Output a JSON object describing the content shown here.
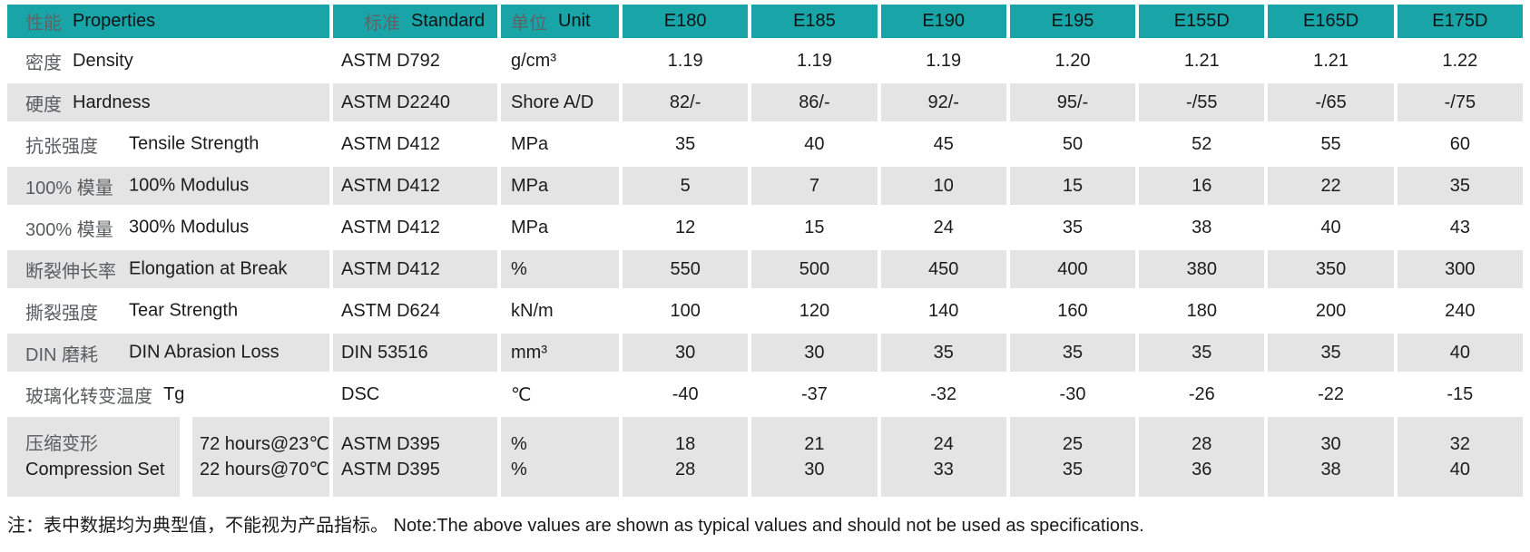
{
  "colors": {
    "header_teal": "#19a5a8",
    "row_gray": "#e4e4e5"
  },
  "table": {
    "header": {
      "properties_zh": "性能",
      "properties_en": "Properties",
      "standard_zh": "标准",
      "standard_en": "Standard",
      "unit_zh": "单位",
      "unit_en": "Unit",
      "products": [
        "E180",
        "E185",
        "E190",
        "E195",
        "E155D",
        "E165D",
        "E175D"
      ]
    },
    "rows": [
      {
        "zh": "密度",
        "en": "Density",
        "standard": "ASTM D792",
        "unit": "g/cm³",
        "en_aligned": false,
        "values": [
          "1.19",
          "1.19",
          "1.19",
          "1.20",
          "1.21",
          "1.21",
          "1.22"
        ]
      },
      {
        "zh": "硬度",
        "en": "Hardness",
        "standard": "ASTM D2240",
        "unit": "Shore A/D",
        "en_aligned": false,
        "values": [
          "82/-",
          "86/-",
          "92/-",
          "95/-",
          "-/55",
          "-/65",
          "-/75"
        ]
      },
      {
        "zh": "抗张强度",
        "en": "Tensile Strength",
        "standard": "ASTM D412",
        "unit": "MPa",
        "en_aligned": true,
        "values": [
          "35",
          "40",
          "45",
          "50",
          "52",
          "55",
          "60"
        ]
      },
      {
        "zh": "100% 模量",
        "en": "100% Modulus",
        "standard": "ASTM D412",
        "unit": "MPa",
        "en_aligned": true,
        "values": [
          "5",
          "7",
          "10",
          "15",
          "16",
          "22",
          "35"
        ]
      },
      {
        "zh": "300% 模量",
        "en": "300% Modulus",
        "standard": "ASTM D412",
        "unit": "MPa",
        "en_aligned": true,
        "values": [
          "12",
          "15",
          "24",
          "35",
          "38",
          "40",
          "43"
        ]
      },
      {
        "zh": "断裂伸长率",
        "en": "Elongation at Break",
        "standard": "ASTM D412",
        "unit": "%",
        "en_aligned": true,
        "values": [
          "550",
          "500",
          "450",
          "400",
          "380",
          "350",
          "300"
        ]
      },
      {
        "zh": "撕裂强度",
        "en": "Tear Strength",
        "standard": "ASTM D624",
        "unit": "kN/m",
        "en_aligned": true,
        "values": [
          "100",
          "120",
          "140",
          "160",
          "180",
          "200",
          "240"
        ]
      },
      {
        "zh": "DIN 磨耗",
        "en": "DIN Abrasion Loss",
        "standard": "DIN 53516",
        "unit": "mm³",
        "en_aligned": true,
        "values": [
          "30",
          "30",
          "35",
          "35",
          "35",
          "35",
          "40"
        ]
      },
      {
        "zh": "玻璃化转变温度",
        "en": "Tg",
        "standard": "DSC",
        "unit": "℃",
        "en_aligned": false,
        "values": [
          "-40",
          "-37",
          "-32",
          "-30",
          "-26",
          "-22",
          "-15"
        ]
      }
    ],
    "compression_row": {
      "zh": "压缩变形",
      "en": "Compression Set",
      "conditions": [
        "72 hours@23℃",
        "22 hours@70℃"
      ],
      "standards": [
        "ASTM D395",
        "ASTM D395"
      ],
      "units": [
        "%",
        "%"
      ],
      "values": [
        [
          "18",
          "21",
          "24",
          "25",
          "28",
          "30",
          "32"
        ],
        [
          "28",
          "30",
          "33",
          "35",
          "36",
          "38",
          "40"
        ]
      ]
    }
  },
  "note": "注：表中数据均为典型值，不能视为产品指标。 Note:The above values are shown as typical values and should not be used as specifications."
}
